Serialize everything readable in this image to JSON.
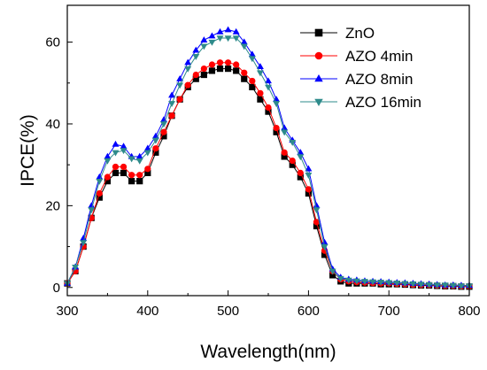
{
  "chart_data": {
    "type": "line",
    "title": "",
    "xlabel": "Wavelength(nm)",
    "ylabel": "IPCE(%)",
    "xlim": [
      300,
      800
    ],
    "ylim": [
      -2,
      69
    ],
    "xticks": [
      300,
      400,
      500,
      600,
      700,
      800
    ],
    "yticks": [
      0,
      20,
      40,
      60
    ],
    "grid": false,
    "legend_position": "top-right",
    "x": [
      300,
      310,
      320,
      330,
      340,
      350,
      360,
      370,
      380,
      390,
      400,
      410,
      420,
      430,
      440,
      450,
      460,
      470,
      480,
      490,
      500,
      510,
      520,
      530,
      540,
      550,
      560,
      570,
      580,
      590,
      600,
      610,
      620,
      630,
      640,
      650,
      660,
      670,
      680,
      690,
      700,
      710,
      720,
      730,
      740,
      750,
      760,
      770,
      780,
      790,
      800
    ],
    "series": [
      {
        "name": "ZnO",
        "color": "#000000",
        "marker": "square",
        "values": [
          1,
          4,
          10,
          17,
          22,
          26,
          28,
          28,
          26,
          26,
          28,
          33,
          37,
          42,
          46,
          49,
          51,
          52,
          53,
          53.5,
          53.5,
          53,
          51,
          49,
          46,
          43,
          38,
          32,
          30,
          27,
          23,
          15,
          8,
          3,
          1.5,
          1,
          1,
          1,
          1,
          0.8,
          0.8,
          0.8,
          0.7,
          0.6,
          0.5,
          0.5,
          0.4,
          0.3,
          0.3,
          0.2,
          0.2
        ]
      },
      {
        "name": "AZO 4min",
        "color": "#ff0000",
        "marker": "circle",
        "values": [
          1,
          4,
          10,
          17,
          23,
          27,
          29.5,
          29.5,
          27.5,
          27.5,
          29,
          34,
          38,
          42,
          46,
          49.5,
          52,
          53.5,
          54.5,
          55,
          55,
          54.5,
          52.5,
          50.5,
          47.5,
          44,
          39,
          33,
          31,
          28,
          24,
          16,
          9,
          4,
          2,
          1.5,
          1.3,
          1.2,
          1.1,
          1,
          1,
          0.9,
          0.8,
          0.7,
          0.6,
          0.6,
          0.5,
          0.4,
          0.4,
          0.3,
          0.3
        ]
      },
      {
        "name": "AZO 8min",
        "color": "#0000ff",
        "marker": "triangle-up",
        "values": [
          1,
          5,
          12,
          20,
          27,
          32,
          35,
          34.5,
          32,
          32,
          34,
          37,
          41,
          47,
          51,
          55,
          58,
          60.5,
          61.5,
          62.5,
          63,
          62.5,
          60,
          57,
          54,
          50.5,
          46,
          39,
          36,
          33,
          29,
          20,
          11,
          4.5,
          2.5,
          2,
          1.8,
          1.6,
          1.5,
          1.4,
          1.3,
          1.2,
          1.1,
          1,
          0.9,
          0.8,
          0.7,
          0.6,
          0.6,
          0.5,
          0.5
        ]
      },
      {
        "name": "AZO 16min",
        "color": "#2e8b8b",
        "marker": "triangle-down",
        "values": [
          1,
          5,
          11,
          19,
          26,
          31,
          33,
          33.5,
          31.5,
          31,
          33,
          36,
          40,
          45,
          49.5,
          53.5,
          56.5,
          59,
          60,
          61,
          61,
          61,
          59,
          56,
          52.5,
          49,
          45,
          38,
          35.5,
          32,
          27.5,
          19,
          10,
          4,
          2.2,
          1.8,
          1.6,
          1.5,
          1.4,
          1.3,
          1.2,
          1.1,
          1,
          0.9,
          0.8,
          0.7,
          0.6,
          0.6,
          0.5,
          0.4,
          0.4
        ]
      }
    ]
  }
}
